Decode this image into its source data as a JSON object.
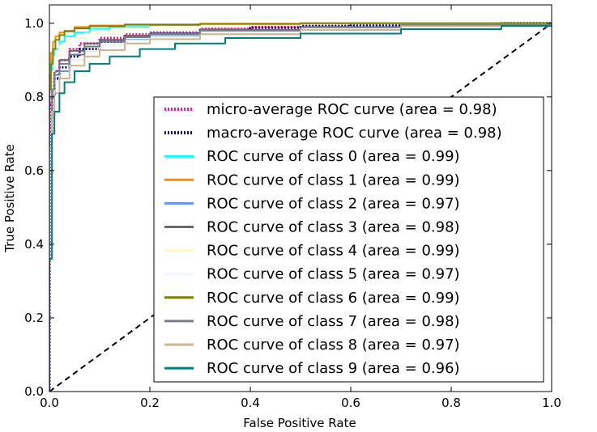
{
  "chart_data": {
    "type": "line",
    "title": "",
    "xlabel": "False Positive Rate",
    "ylabel": "True Positive Rate",
    "xlim": [
      0.0,
      1.0
    ],
    "ylim": [
      0.0,
      1.05
    ],
    "xticks": [
      "0.0",
      "0.2",
      "0.4",
      "0.6",
      "0.8",
      "1.0"
    ],
    "yticks": [
      "0.0",
      "0.2",
      "0.4",
      "0.6",
      "0.8",
      "1.0"
    ],
    "grid": false,
    "legend_position": "lower-right",
    "series": [
      {
        "name": "micro-average ROC curve (area = 0.98)",
        "color": "#ff1493",
        "style": "dotted",
        "x": [
          0.0,
          0.0,
          0.005,
          0.01,
          0.02,
          0.04,
          0.06,
          0.1,
          0.15,
          0.2,
          0.3,
          0.4,
          0.5,
          0.6,
          0.7,
          0.8,
          0.9,
          1.0
        ],
        "y": [
          0.0,
          0.78,
          0.84,
          0.87,
          0.9,
          0.93,
          0.945,
          0.96,
          0.97,
          0.975,
          0.985,
          0.99,
          0.993,
          0.996,
          0.998,
          0.999,
          1.0,
          1.0
        ]
      },
      {
        "name": "macro-average ROC curve (area = 0.98)",
        "color": "#000080",
        "style": "dotted",
        "x": [
          0.0,
          0.0,
          0.005,
          0.01,
          0.02,
          0.04,
          0.06,
          0.1,
          0.15,
          0.2,
          0.3,
          0.4,
          0.5,
          0.6,
          0.7,
          0.8,
          0.9,
          1.0
        ],
        "y": [
          0.0,
          0.7,
          0.8,
          0.85,
          0.88,
          0.91,
          0.93,
          0.95,
          0.965,
          0.972,
          0.982,
          0.988,
          0.992,
          0.995,
          0.997,
          0.999,
          1.0,
          1.0
        ]
      },
      {
        "name": "ROC curve of class 0 (area = 0.99)",
        "color": "#00ffff",
        "style": "solid",
        "x": [
          0.0,
          0.0,
          0.005,
          0.01,
          0.02,
          0.03,
          0.05,
          0.08,
          0.12,
          0.2,
          0.3,
          0.5,
          0.7,
          1.0
        ],
        "y": [
          0.0,
          0.85,
          0.9,
          0.93,
          0.95,
          0.965,
          0.975,
          0.985,
          0.99,
          0.995,
          0.998,
          1.0,
          1.0,
          1.0
        ]
      },
      {
        "name": "ROC curve of class 1 (area = 0.99)",
        "color": "#ff8c00",
        "style": "solid",
        "x": [
          0.0,
          0.0,
          0.003,
          0.007,
          0.012,
          0.02,
          0.03,
          0.05,
          0.08,
          0.15,
          0.3,
          0.5,
          1.0
        ],
        "y": [
          0.0,
          0.86,
          0.92,
          0.95,
          0.965,
          0.975,
          0.98,
          0.99,
          0.994,
          0.997,
          0.999,
          1.0,
          1.0
        ]
      },
      {
        "name": "ROC curve of class 2 (area = 0.97)",
        "color": "#6495ed",
        "style": "solid",
        "x": [
          0.0,
          0.0,
          0.005,
          0.01,
          0.02,
          0.04,
          0.07,
          0.1,
          0.15,
          0.2,
          0.3,
          0.5,
          0.7,
          1.0
        ],
        "y": [
          0.0,
          0.72,
          0.8,
          0.84,
          0.87,
          0.9,
          0.925,
          0.94,
          0.955,
          0.965,
          0.975,
          0.985,
          0.995,
          1.0
        ]
      },
      {
        "name": "ROC curve of class 3 (area = 0.98)",
        "color": "#696969",
        "style": "solid",
        "x": [
          0.0,
          0.0,
          0.005,
          0.01,
          0.02,
          0.04,
          0.07,
          0.1,
          0.15,
          0.2,
          0.3,
          0.5,
          0.7,
          1.0
        ],
        "y": [
          0.0,
          0.75,
          0.83,
          0.87,
          0.9,
          0.925,
          0.945,
          0.955,
          0.965,
          0.972,
          0.982,
          0.99,
          0.996,
          1.0
        ]
      },
      {
        "name": "ROC curve of class 4 (area = 0.99)",
        "color": "#fffacd",
        "style": "solid",
        "x": [
          0.0,
          0.0,
          0.005,
          0.01,
          0.02,
          0.04,
          0.07,
          0.1,
          0.15,
          0.2,
          0.3,
          0.5,
          1.0
        ],
        "y": [
          0.0,
          0.8,
          0.87,
          0.91,
          0.94,
          0.96,
          0.972,
          0.98,
          0.986,
          0.99,
          0.995,
          0.999,
          1.0
        ]
      },
      {
        "name": "ROC curve of class 5 (area = 0.97)",
        "color": "#f0f8ff",
        "style": "solid",
        "x": [
          0.0,
          0.0,
          0.005,
          0.01,
          0.02,
          0.04,
          0.07,
          0.1,
          0.15,
          0.2,
          0.3,
          0.5,
          0.7,
          1.0
        ],
        "y": [
          0.0,
          0.7,
          0.79,
          0.84,
          0.875,
          0.9,
          0.925,
          0.94,
          0.953,
          0.963,
          0.975,
          0.986,
          0.994,
          1.0
        ]
      },
      {
        "name": "ROC curve of class 6 (area = 0.99)",
        "color": "#808000",
        "style": "solid",
        "x": [
          0.0,
          0.0,
          0.003,
          0.007,
          0.012,
          0.02,
          0.03,
          0.05,
          0.08,
          0.15,
          0.3,
          0.5,
          1.0
        ],
        "y": [
          0.0,
          0.82,
          0.89,
          0.93,
          0.955,
          0.968,
          0.978,
          0.986,
          0.992,
          0.996,
          0.998,
          1.0,
          1.0
        ]
      },
      {
        "name": "ROC curve of class 7 (area = 0.98)",
        "color": "#708090",
        "style": "solid",
        "x": [
          0.0,
          0.0,
          0.005,
          0.01,
          0.02,
          0.04,
          0.07,
          0.1,
          0.15,
          0.2,
          0.3,
          0.5,
          0.7,
          1.0
        ],
        "y": [
          0.0,
          0.74,
          0.82,
          0.86,
          0.89,
          0.915,
          0.937,
          0.95,
          0.962,
          0.97,
          0.98,
          0.989,
          0.995,
          1.0
        ]
      },
      {
        "name": "ROC curve of class 8 (area = 0.97)",
        "color": "#d2b48c",
        "style": "solid",
        "x": [
          0.0,
          0.0,
          0.005,
          0.01,
          0.02,
          0.04,
          0.07,
          0.1,
          0.15,
          0.2,
          0.3,
          0.5,
          0.7,
          1.0
        ],
        "y": [
          0.0,
          0.66,
          0.76,
          0.81,
          0.85,
          0.885,
          0.91,
          0.927,
          0.945,
          0.957,
          0.97,
          0.982,
          0.992,
          1.0
        ]
      },
      {
        "name": "ROC curve of class 9 (area = 0.96)",
        "color": "#008080",
        "style": "solid",
        "x": [
          0.0,
          0.0,
          0.005,
          0.01,
          0.02,
          0.03,
          0.05,
          0.08,
          0.12,
          0.18,
          0.25,
          0.35,
          0.5,
          0.7,
          0.9,
          1.0
        ],
        "y": [
          0.0,
          0.36,
          0.7,
          0.76,
          0.81,
          0.84,
          0.87,
          0.89,
          0.91,
          0.93,
          0.945,
          0.96,
          0.972,
          0.984,
          0.993,
          1.0
        ]
      }
    ],
    "chance_line": {
      "x": [
        0.0,
        1.0
      ],
      "y": [
        0.0,
        1.0
      ],
      "color": "#000000",
      "style": "dashed"
    }
  }
}
